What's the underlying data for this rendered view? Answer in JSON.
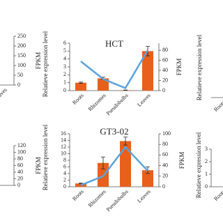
{
  "chart_data": [
    {
      "type": "bar",
      "title": "HCT",
      "categories": [
        "Roots",
        "Rhizomes",
        "Pseudobulbs",
        "Leaves"
      ],
      "values": [
        1.0,
        1.55,
        0.05,
        5.0
      ],
      "errors": [
        0.08,
        0.15,
        0.02,
        0.6
      ],
      "color": "#e8601c",
      "line_values": [
        58,
        23,
        5,
        80
      ],
      "line_color": "#5ba3dc",
      "ylabel": "Relatieve expression level",
      "y2label": "FPKM",
      "ylim": [
        0,
        6
      ],
      "yticks": [
        0,
        1,
        2,
        3,
        4,
        5,
        6
      ],
      "y2lim": [
        0,
        94
      ],
      "y2ticks": [
        0,
        20,
        40,
        60,
        80
      ]
    },
    {
      "type": "bar",
      "title": "GT3-02",
      "categories": [
        "Roots",
        "Rhizomes",
        "Pseudobulbs",
        "Leaves"
      ],
      "values": [
        1.0,
        7.2,
        13.8,
        5.0
      ],
      "errors": [
        0.1,
        1.8,
        1.2,
        1.0
      ],
      "color": "#e8601c",
      "line_values": [
        3,
        20,
        75,
        30
      ],
      "line_color": "#5ba3dc",
      "ylabel": "Relatieve expression level",
      "y2label": "FPKM",
      "ylim": [
        0,
        16
      ],
      "yticks": [
        0,
        2,
        4,
        6,
        8,
        10,
        12,
        14,
        16
      ],
      "y2lim": [
        0,
        100
      ],
      "y2ticks": [
        0,
        20,
        40,
        60,
        80,
        100
      ]
    },
    {
      "type": "bar",
      "categories": [
        "Leaves"
      ],
      "y2label": "FPKM",
      "y2lim": [
        0,
        250
      ],
      "y2ticks": [
        0,
        50,
        100,
        150,
        200,
        250
      ]
    },
    {
      "type": "bar",
      "categories": [
        "Roots"
      ],
      "ylabel": "Relatieve expression level"
    },
    {
      "type": "bar",
      "y2label": "FPKM",
      "y2lim": [
        0,
        120
      ],
      "y2ticks": [
        0,
        20,
        40,
        60,
        80,
        100,
        120
      ]
    },
    {
      "type": "bar",
      "categories": [
        "Roots"
      ],
      "ylabel": "Relatieve expression level",
      "ylim": [
        0,
        3
      ],
      "yticks": [
        0,
        1,
        2,
        3
      ]
    }
  ]
}
